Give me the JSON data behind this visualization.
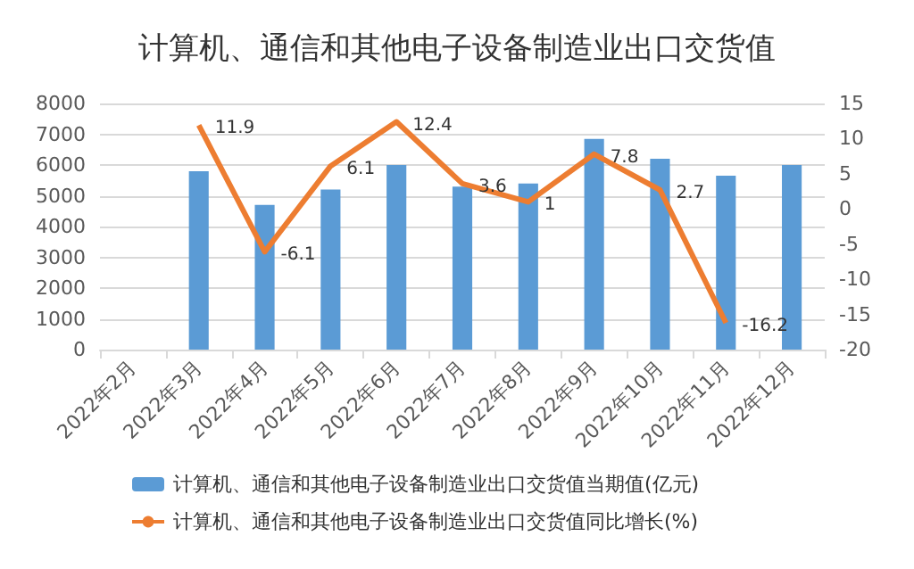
{
  "chart_data": {
    "type": "bar",
    "title": "计算机、通信和其他电子设备制造业出口交货值",
    "categories": [
      "2022年2月",
      "2022年3月",
      "2022年4月",
      "2022年5月",
      "2022年6月",
      "2022年7月",
      "2022年8月",
      "2022年9月",
      "2022年10月",
      "2022年11月",
      "2022年12月"
    ],
    "series": [
      {
        "name": "计算机、通信和其他电子设备制造业出口交货值当期值(亿元)",
        "color": "#5b9bd5",
        "values": [
          null,
          5800,
          4700,
          5200,
          6000,
          5300,
          5400,
          6850,
          6200,
          5650,
          6000
        ]
      },
      {
        "name": "计算机、通信和其他电子设备制造业出口交货值同比增长(%)",
        "type": "line",
        "axis": "y2",
        "color": "#ed7d31",
        "data_labels": true,
        "marker": "none",
        "values": [
          null,
          11.9,
          -6.1,
          6.1,
          12.4,
          3.6,
          1,
          7.8,
          2.7,
          -16.2,
          null
        ]
      }
    ],
    "ylim": [
      0,
      8000
    ],
    "yticks": [
      0,
      1000,
      2000,
      3000,
      4000,
      5000,
      6000,
      7000,
      8000
    ],
    "y2lim": [
      -20,
      15
    ],
    "y2ticks": [
      -20,
      -15,
      -10,
      -5,
      0,
      5,
      10,
      15
    ],
    "grid": "y",
    "legend": "bottom"
  }
}
